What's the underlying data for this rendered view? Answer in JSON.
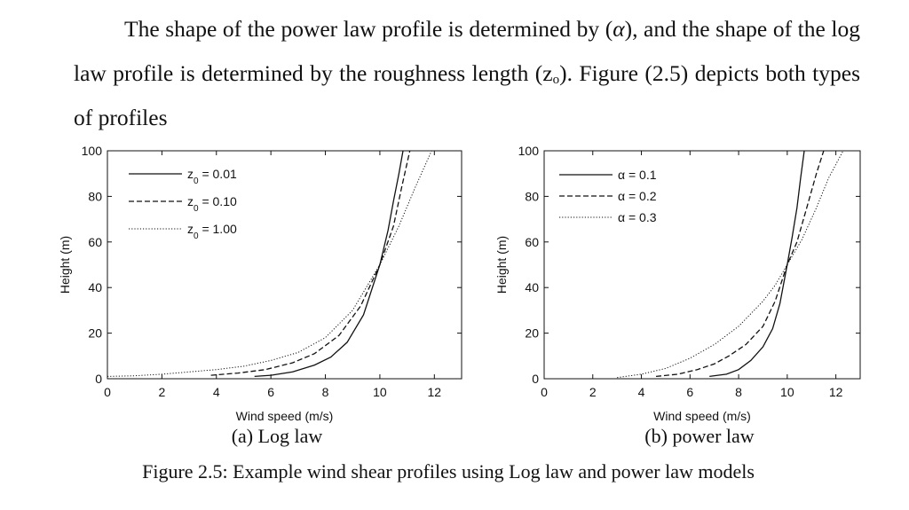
{
  "paragraph": {
    "part1": "The shape of the power law profile is determined by (",
    "alpha": "α",
    "part2": "), and the shape of the log law profile is determined by the roughness length (z",
    "sub": "o",
    "part3": "). Figure (2.5) depicts both types of profiles"
  },
  "captions": {
    "sub_a": "(a) Log law",
    "sub_b": "(b) power law",
    "figure": "Figure 2.5: Example wind shear profiles using Log law and power law models"
  },
  "chart_data": [
    {
      "type": "line",
      "title": "",
      "xlabel": "Wind speed (m/s)",
      "ylabel": "Height (m)",
      "xlim": [
        0,
        13
      ],
      "ylim": [
        0,
        100
      ],
      "xticks": [
        0,
        2,
        4,
        6,
        8,
        10,
        12
      ],
      "yticks": [
        0,
        20,
        40,
        60,
        80,
        100
      ],
      "legend_position": "top-left",
      "series": [
        {
          "name": "z0 = 0.01",
          "legend_main": "z",
          "legend_sub": "0",
          "legend_rest": " = 0.01",
          "style": "solid",
          "x": [
            5.4,
            6.0,
            6.8,
            7.6,
            8.2,
            8.8,
            9.4,
            10.0,
            10.3,
            10.5,
            10.7,
            10.85
          ],
          "y": [
            1,
            1.5,
            3,
            6,
            9.5,
            16,
            28,
            50,
            65,
            78,
            90,
            100
          ]
        },
        {
          "name": "z0 = 0.10",
          "legend_main": "z",
          "legend_sub": "0",
          "legend_rest": " = 0.10",
          "style": "dashed",
          "x": [
            3.8,
            4.8,
            5.8,
            6.8,
            7.6,
            8.5,
            9.3,
            10.0,
            10.5,
            10.8,
            11.1
          ],
          "y": [
            1.5,
            2.5,
            4,
            7,
            11,
            19,
            32,
            50,
            67,
            84,
            100
          ]
        },
        {
          "name": "z0 = 1.00",
          "legend_main": "z",
          "legend_sub": "0",
          "legend_rest": " = 1.00",
          "style": "dotted",
          "x": [
            0.0,
            1.0,
            2.0,
            3.0,
            4.0,
            5.0,
            6.0,
            7.0,
            8.0,
            9.0,
            10.0,
            10.7,
            11.3,
            11.9
          ],
          "y": [
            1.0,
            1.3,
            2.0,
            3.0,
            4.0,
            5.5,
            8.0,
            11.5,
            18,
            30,
            50,
            67,
            84,
            100
          ]
        }
      ]
    },
    {
      "type": "line",
      "title": "",
      "xlabel": "Wind speed (m/s)",
      "ylabel": "Height (m)",
      "xlim": [
        0,
        13
      ],
      "ylim": [
        0,
        100
      ],
      "xticks": [
        0,
        2,
        4,
        6,
        8,
        10,
        12
      ],
      "yticks": [
        0,
        20,
        40,
        60,
        80,
        100
      ],
      "legend_position": "top-left",
      "series": [
        {
          "name": "α = 0.1",
          "legend_main": "α = 0.1",
          "style": "solid",
          "x": [
            6.8,
            7.5,
            8.0,
            8.5,
            9.0,
            9.4,
            9.7,
            10.0,
            10.2,
            10.4,
            10.55,
            10.7
          ],
          "y": [
            1,
            2,
            4,
            8,
            14,
            22,
            33,
            50,
            62,
            75,
            88,
            100
          ]
        },
        {
          "name": "α = 0.2",
          "legend_main": "α = 0.2",
          "style": "dashed",
          "x": [
            4.6,
            5.5,
            6.3,
            7.0,
            7.6,
            8.3,
            9.0,
            9.5,
            10.0,
            10.4,
            10.8,
            11.2,
            11.5
          ],
          "y": [
            1,
            2,
            4,
            6.5,
            10,
            15,
            23,
            34,
            50,
            60,
            75,
            90,
            100
          ]
        },
        {
          "name": "α = 0.3",
          "legend_main": "α = 0.3",
          "style": "dotted",
          "x": [
            3.0,
            4.0,
            5.0,
            6.0,
            7.0,
            8.0,
            9.0,
            9.5,
            10.0,
            10.6,
            11.2,
            11.7,
            12.3
          ],
          "y": [
            0.5,
            2,
            4.5,
            9,
            15,
            23,
            34,
            41,
            50,
            61,
            75,
            88,
            100
          ]
        }
      ]
    }
  ]
}
